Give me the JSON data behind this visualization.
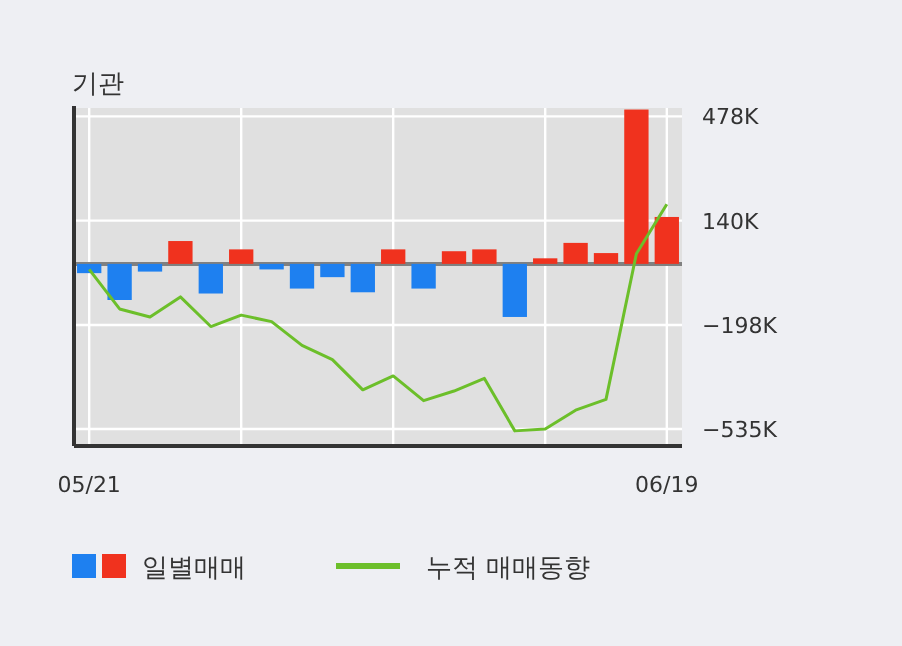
{
  "chart_data": {
    "type": "bar",
    "title": "기관",
    "categories": [
      "05/21",
      null,
      null,
      null,
      null,
      null,
      null,
      null,
      null,
      null,
      null,
      null,
      null,
      null,
      null,
      null,
      null,
      null,
      null,
      "06/19"
    ],
    "series": [
      {
        "name": "일별매매",
        "colors": [
          "#1e80f0",
          "#1e80f0",
          "#1e80f0",
          "#f0321e",
          "#1e80f0",
          "#f0321e",
          "#1e80f0",
          "#1e80f0",
          "#1e80f0",
          "#1e80f0",
          "#f0321e",
          "#1e80f0",
          "#f0321e",
          "#f0321e",
          "#1e80f0",
          "#f0321e",
          "#f0321e",
          "#f0321e",
          "#f0321e",
          "#f0321e"
        ],
        "values": [
          -30,
          -117,
          -25,
          74,
          -96,
          47,
          -18,
          -80,
          -43,
          -92,
          47,
          -80,
          41,
          47,
          -172,
          18,
          68,
          35,
          500,
          152
        ]
      },
      {
        "name": "누적 매매동향",
        "type": "line",
        "color": "#6cbf2a",
        "values": [
          -18,
          -146,
          -172,
          -107,
          -203,
          -166,
          -187,
          -264,
          -310,
          -408,
          -363,
          -443,
          -412,
          -371,
          -541,
          -535,
          -474,
          -439,
          33,
          193
        ]
      }
    ],
    "ylim": [
      -590,
      505
    ],
    "yticks": [
      {
        "value": 478,
        "label": "478K"
      },
      {
        "value": 140,
        "label": "140K"
      },
      {
        "value": -198,
        "label": "−198K"
      },
      {
        "value": -535,
        "label": "−535K"
      }
    ],
    "grid": true,
    "legend": "bottom",
    "marker": "none"
  }
}
